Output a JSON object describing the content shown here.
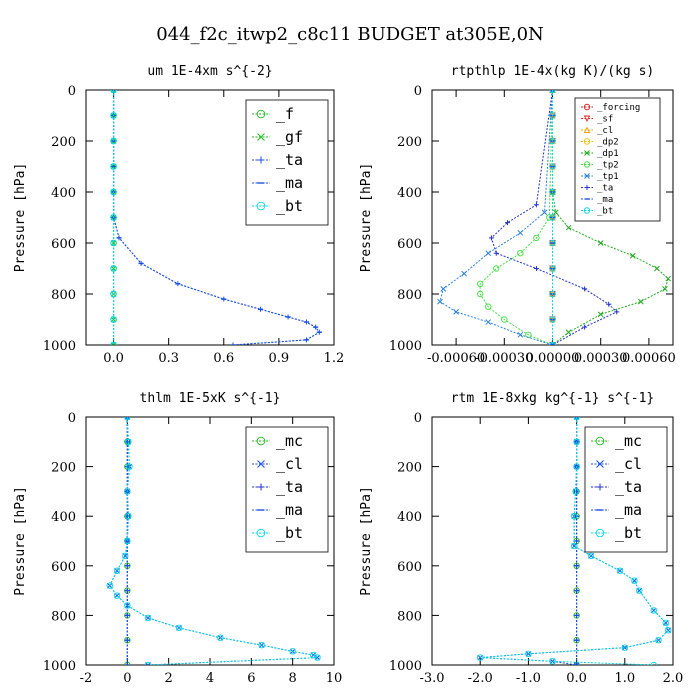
{
  "suptitle": "044_f2c_itwp2_c8c11  BUDGET at305E,0N",
  "colors": {
    "green": "#22bb22",
    "blue": "#1a4fe0",
    "blue_dark": "#2233cc",
    "cyan": "#00d8e8",
    "red": "#dd2222",
    "orange": "#f0a000",
    "lime": "#44dd44"
  },
  "chart_data": [
    {
      "type": "line",
      "title": "um   1E-4xm s^{-2}",
      "ylabel": "Pressure [hPa]",
      "xlim": [
        -0.15,
        1.2
      ],
      "ylim": [
        1000,
        0
      ],
      "xticks": [
        0.0,
        0.3,
        0.6,
        0.9,
        1.2
      ],
      "xticklabels": [
        "0.0",
        "0.3",
        "0.6",
        "0.9",
        "1.2"
      ],
      "yticks": [
        0,
        200,
        400,
        600,
        800,
        1000
      ],
      "legend_position": "top-right",
      "legend_style": "large",
      "series": [
        {
          "name": "_f",
          "color": "#22bb22",
          "marker": "o",
          "x": [
            0,
            0,
            0,
            0,
            0,
            0,
            0,
            0,
            0,
            0,
            0
          ],
          "y": [
            0,
            100,
            200,
            300,
            400,
            500,
            600,
            700,
            800,
            900,
            1000
          ]
        },
        {
          "name": "_gf",
          "color": "#22bb22",
          "marker": "x",
          "x": [
            0,
            0,
            0,
            0,
            0,
            0,
            0,
            0,
            0,
            0,
            0
          ],
          "y": [
            0,
            100,
            200,
            300,
            400,
            500,
            600,
            700,
            800,
            900,
            1000
          ]
        },
        {
          "name": "_ta",
          "color": "#1a4fe0",
          "marker": "+",
          "x": [
            0.0,
            0.0,
            0.0,
            0.0,
            0.0,
            0.0,
            0.03,
            0.15,
            0.35,
            0.6,
            0.8,
            0.95,
            1.05,
            1.1,
            1.12,
            1.05,
            0.65
          ],
          "y": [
            0,
            100,
            200,
            300,
            400,
            500,
            580,
            680,
            760,
            820,
            860,
            890,
            910,
            930,
            950,
            980,
            1000
          ]
        },
        {
          "name": "_ma",
          "color": "#1a4fe0",
          "marker": "-",
          "x": [
            0.0,
            0.0,
            0.0,
            0.0,
            0.0,
            0.0,
            0.03,
            0.15,
            0.35,
            0.6,
            0.8,
            0.95,
            1.05,
            1.1,
            1.12,
            1.05,
            0.65
          ],
          "y": [
            0,
            100,
            200,
            300,
            400,
            500,
            580,
            680,
            760,
            820,
            860,
            890,
            910,
            930,
            950,
            980,
            1000
          ]
        },
        {
          "name": "_bt",
          "color": "#00d8e8",
          "marker": "o",
          "x": [
            0,
            0,
            0,
            0,
            0,
            0,
            0,
            0,
            0,
            0,
            0
          ],
          "y": [
            0,
            100,
            200,
            300,
            400,
            500,
            600,
            700,
            800,
            900,
            1000
          ]
        }
      ]
    },
    {
      "type": "line",
      "title": "rtpthlp   1E-4x(kg K)/(kg s)",
      "ylabel": "Pressure [hPa]",
      "xlim": [
        -0.00075,
        0.00075
      ],
      "ylim": [
        1000,
        0
      ],
      "xticks": [
        -0.0006,
        -0.0003,
        0.0,
        0.0003,
        0.0006
      ],
      "xticklabels": [
        "-0.00060",
        "-0.00030",
        "0.00000",
        "0.00030",
        "0.00060"
      ],
      "yticks": [
        0,
        200,
        400,
        600,
        800,
        1000
      ],
      "legend_position": "top-right",
      "legend_style": "small",
      "series": [
        {
          "name": "_forcing",
          "color": "#dd2222",
          "marker": "o",
          "x": [
            0,
            0,
            0,
            0,
            0,
            0,
            0,
            0,
            0,
            0,
            0
          ],
          "y": [
            0,
            100,
            200,
            300,
            400,
            500,
            600,
            700,
            800,
            900,
            1000
          ]
        },
        {
          "name": "_sf",
          "color": "#dd2222",
          "marker": "v",
          "x": [
            0,
            0,
            0,
            0,
            0,
            0,
            0,
            0,
            0,
            0,
            0
          ],
          "y": [
            0,
            100,
            200,
            300,
            400,
            500,
            600,
            700,
            800,
            900,
            1000
          ]
        },
        {
          "name": "_cl",
          "color": "#f0a000",
          "marker": "^",
          "x": [
            0,
            0,
            0,
            0,
            0,
            0,
            0,
            0,
            0,
            0,
            0
          ],
          "y": [
            0,
            100,
            200,
            300,
            400,
            500,
            600,
            700,
            800,
            900,
            1000
          ]
        },
        {
          "name": "_dp2",
          "color": "#f0c000",
          "marker": "o",
          "x": [
            0,
            0,
            0,
            0,
            0,
            0,
            0,
            0,
            0,
            0,
            0
          ],
          "y": [
            0,
            100,
            200,
            300,
            400,
            500,
            600,
            700,
            800,
            900,
            1000
          ]
        },
        {
          "name": "_dp1",
          "color": "#22aa22",
          "marker": "x",
          "x": [
            0.0,
            0.0,
            2e-05,
            0.0001,
            0.0003,
            0.0005,
            0.00065,
            0.00072,
            0.0007,
            0.00055,
            0.0003,
            0.0001,
            0.0
          ],
          "y": [
            0,
            400,
            480,
            540,
            600,
            650,
            700,
            740,
            780,
            830,
            880,
            950,
            1000
          ]
        },
        {
          "name": "_tp2",
          "color": "#44dd44",
          "marker": "o",
          "x": [
            0.0,
            -2e-05,
            -0.0001,
            -0.0002,
            -0.00035,
            -0.00045,
            -0.00045,
            -0.0004,
            -0.0003,
            -0.00015,
            0.0
          ],
          "y": [
            0,
            500,
            580,
            640,
            700,
            760,
            800,
            850,
            900,
            960,
            1000
          ]
        },
        {
          "name": "_tp1",
          "color": "#2a7fe0",
          "marker": "x",
          "x": [
            0.0,
            -5e-05,
            -0.0002,
            -0.0004,
            -0.00055,
            -0.00068,
            -0.0007,
            -0.0006,
            -0.0004,
            -0.0002,
            0.0
          ],
          "y": [
            0,
            480,
            560,
            640,
            720,
            780,
            830,
            870,
            910,
            960,
            1000
          ]
        },
        {
          "name": "_ta",
          "color": "#2233cc",
          "marker": "+",
          "x": [
            0.0,
            -0.0001,
            -0.00028,
            -0.00038,
            -0.00035,
            -0.0001,
            0.0002,
            0.00035,
            0.0004,
            0.0002,
            0.0
          ],
          "y": [
            0,
            450,
            520,
            580,
            640,
            700,
            780,
            840,
            870,
            930,
            1000
          ]
        },
        {
          "name": "_ma",
          "color": "#1a4fe0",
          "marker": "-",
          "x": [
            0,
            0,
            0,
            0,
            0,
            0,
            0,
            0,
            0,
            0,
            0
          ],
          "y": [
            0,
            100,
            200,
            300,
            400,
            500,
            600,
            700,
            800,
            900,
            1000
          ]
        },
        {
          "name": "_bt",
          "color": "#00d8e8",
          "marker": "o",
          "x": [
            0,
            0,
            0,
            0,
            0,
            0,
            0,
            0,
            0,
            0,
            0
          ],
          "y": [
            0,
            100,
            200,
            300,
            400,
            500,
            600,
            700,
            800,
            900,
            1000
          ]
        }
      ]
    },
    {
      "type": "line",
      "title": "thlm   1E-5xK s^{-1}",
      "ylabel": "Pressure [hPa]",
      "xlim": [
        -2,
        10
      ],
      "ylim": [
        1000,
        0
      ],
      "xticks": [
        -2,
        0,
        2,
        4,
        6,
        8,
        10
      ],
      "xticklabels": [
        "-2",
        "0",
        "2",
        "4",
        "6",
        "8",
        "10"
      ],
      "yticks": [
        0,
        200,
        400,
        600,
        800,
        1000
      ],
      "legend_position": "top-right",
      "legend_style": "large",
      "series": [
        {
          "name": "_mc",
          "color": "#22bb22",
          "marker": "o",
          "x": [
            0,
            0,
            0,
            0,
            0,
            0,
            0,
            0,
            0,
            0,
            0
          ],
          "y": [
            0,
            100,
            200,
            300,
            400,
            500,
            600,
            700,
            800,
            900,
            1000
          ]
        },
        {
          "name": "_cl",
          "color": "#1a4fe0",
          "marker": "x",
          "x": [
            0.0,
            0.05,
            0.1,
            0.0,
            0.05,
            0.0,
            -0.1,
            -0.5,
            -0.85,
            -0.5,
            0.0,
            1.0,
            2.5,
            4.5,
            6.5,
            8.0,
            9.0,
            9.2,
            1.0
          ],
          "y": [
            0,
            100,
            200,
            300,
            400,
            500,
            560,
            620,
            680,
            720,
            760,
            810,
            850,
            890,
            920,
            945,
            960,
            970,
            1000
          ]
        },
        {
          "name": "_ta",
          "color": "#2233cc",
          "marker": "+",
          "x": [
            0,
            0,
            0,
            0,
            0,
            0,
            0,
            0,
            0,
            0,
            0
          ],
          "y": [
            0,
            100,
            200,
            300,
            400,
            500,
            600,
            700,
            800,
            900,
            1000
          ]
        },
        {
          "name": "_ma",
          "color": "#1a4fe0",
          "marker": "-",
          "x": [
            0,
            0,
            0,
            0,
            0,
            0,
            0,
            0,
            0,
            0,
            0
          ],
          "y": [
            0,
            100,
            200,
            300,
            400,
            500,
            600,
            700,
            800,
            900,
            1000
          ]
        },
        {
          "name": "_bt",
          "color": "#00d8e8",
          "marker": "o",
          "x": [
            0.0,
            0.05,
            0.1,
            0.0,
            0.05,
            0.0,
            -0.1,
            -0.5,
            -0.85,
            -0.5,
            0.0,
            1.0,
            2.5,
            4.5,
            6.5,
            8.0,
            9.0,
            9.2,
            1.0
          ],
          "y": [
            0,
            100,
            200,
            300,
            400,
            500,
            560,
            620,
            680,
            720,
            760,
            810,
            850,
            890,
            920,
            945,
            960,
            970,
            1000
          ]
        }
      ]
    },
    {
      "type": "line",
      "title": "rtm   1E-8xkg kg^{-1} s^{-1}",
      "ylabel": "Pressure [hPa]",
      "xlim": [
        -3.0,
        2.0
      ],
      "ylim": [
        1000,
        0
      ],
      "xticks": [
        -3.0,
        -2.0,
        -1.0,
        0.0,
        1.0,
        2.0
      ],
      "xticklabels": [
        "-3.0",
        "-2.0",
        "-1.0",
        "0.0",
        "1.0",
        "2.0"
      ],
      "yticks": [
        0,
        200,
        400,
        600,
        800,
        1000
      ],
      "legend_position": "top-right",
      "legend_style": "large",
      "series": [
        {
          "name": "_mc",
          "color": "#22bb22",
          "marker": "o",
          "x": [
            0,
            0,
            0,
            0,
            0,
            0,
            0,
            0,
            0,
            0,
            0
          ],
          "y": [
            0,
            100,
            200,
            300,
            400,
            500,
            600,
            700,
            800,
            900,
            1000
          ]
        },
        {
          "name": "_cl",
          "color": "#1a4fe0",
          "marker": "x",
          "x": [
            0.0,
            0.0,
            0.0,
            -0.02,
            -0.05,
            -0.05,
            0.3,
            0.9,
            1.2,
            1.3,
            1.6,
            1.85,
            1.9,
            1.7,
            1.0,
            -1.0,
            -2.0,
            -0.5,
            0.0
          ],
          "y": [
            0,
            100,
            200,
            300,
            400,
            520,
            560,
            620,
            660,
            700,
            780,
            830,
            860,
            900,
            930,
            955,
            970,
            985,
            1000
          ]
        },
        {
          "name": "_ta",
          "color": "#2233cc",
          "marker": "+",
          "x": [
            0,
            0,
            0,
            0,
            0,
            0,
            0,
            0,
            0,
            0,
            0
          ],
          "y": [
            0,
            100,
            200,
            300,
            400,
            500,
            600,
            700,
            800,
            900,
            1000
          ]
        },
        {
          "name": "_ma",
          "color": "#1a4fe0",
          "marker": "-",
          "x": [
            0,
            0,
            0,
            0,
            0,
            0,
            0,
            0,
            0,
            0,
            0
          ],
          "y": [
            0,
            100,
            200,
            300,
            400,
            500,
            600,
            700,
            800,
            900,
            1000
          ]
        },
        {
          "name": "_bt",
          "color": "#00d8e8",
          "marker": "o",
          "x": [
            0.0,
            0.0,
            0.0,
            -0.02,
            -0.05,
            -0.05,
            0.3,
            0.9,
            1.2,
            1.3,
            1.6,
            1.85,
            1.9,
            1.7,
            1.0,
            -1.0,
            -2.0,
            -0.5,
            1.6
          ],
          "y": [
            0,
            100,
            200,
            300,
            400,
            520,
            560,
            620,
            660,
            700,
            780,
            830,
            860,
            900,
            930,
            955,
            970,
            985,
            1000
          ]
        }
      ]
    }
  ]
}
